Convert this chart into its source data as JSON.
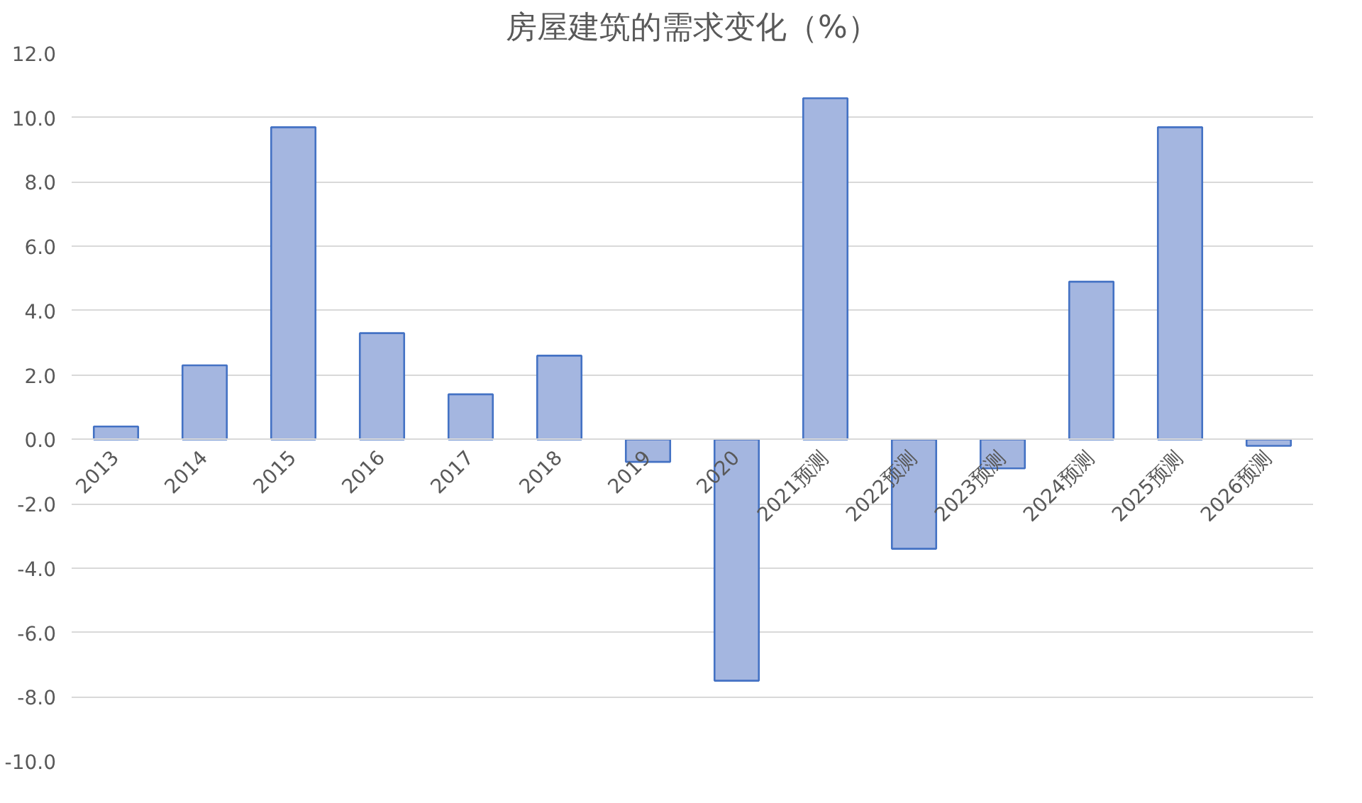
{
  "chart_data": {
    "type": "bar",
    "title": "房屋建筑的需求变化（%）",
    "categories": [
      "2013",
      "2014",
      "2015",
      "2016",
      "2017",
      "2018",
      "2019",
      "2020",
      "2021预测",
      "2022预测",
      "2023预测",
      "2024预测",
      "2025预测",
      "2026预测"
    ],
    "values": [
      0.4,
      2.3,
      9.7,
      3.3,
      1.4,
      2.6,
      -0.7,
      -7.5,
      10.6,
      -3.4,
      -0.9,
      4.9,
      9.7,
      -0.2
    ],
    "color": "#a4b6e0",
    "ylim": [
      -10,
      12
    ],
    "yticks": [
      {
        "value": -10,
        "label": "-10.0"
      },
      {
        "value": -8,
        "label": "-8.0"
      },
      {
        "value": -6,
        "label": "-6.0"
      },
      {
        "value": -4,
        "label": "-4.0"
      },
      {
        "value": -2,
        "label": "-2.0"
      },
      {
        "value": 0,
        "label": "0.0"
      },
      {
        "value": 2,
        "label": "2.0"
      },
      {
        "value": 4,
        "label": "4.0"
      },
      {
        "value": 6,
        "label": "6.0"
      },
      {
        "value": 8,
        "label": "8.0"
      },
      {
        "value": 10,
        "label": "10.0"
      },
      {
        "value": 12,
        "label": "12.0"
      }
    ],
    "grid": "y"
  }
}
